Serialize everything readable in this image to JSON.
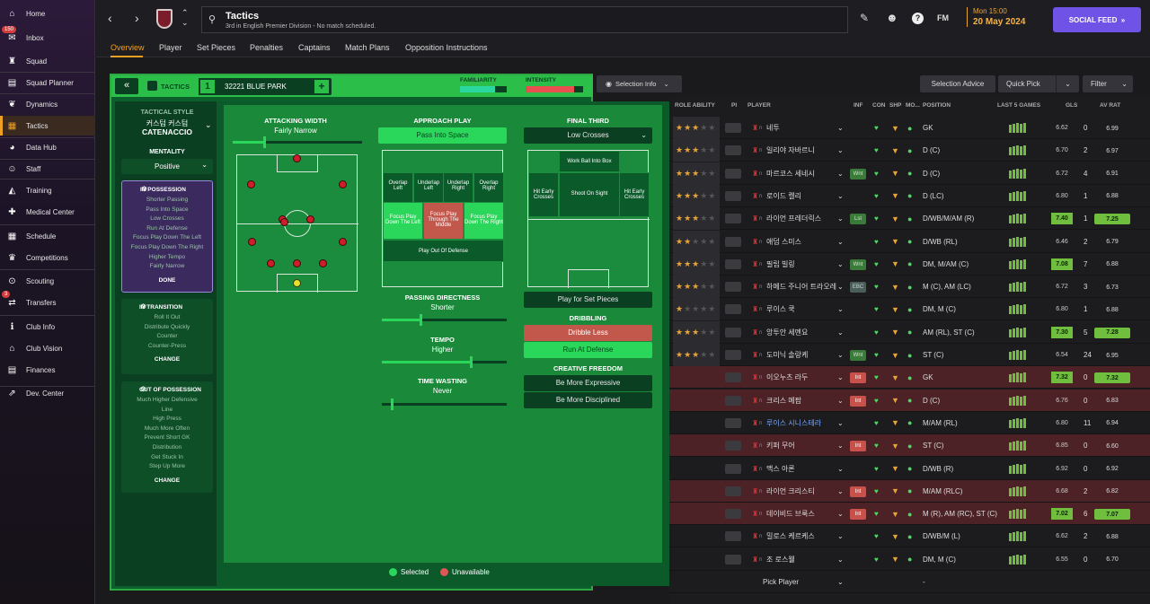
{
  "sidebar": {
    "items": [
      {
        "label": "Home",
        "icon": "home-icon"
      },
      {
        "label": "Inbox",
        "icon": "inbox-icon",
        "badge": "150"
      },
      {
        "label": "Squad",
        "icon": "shirt-icon"
      },
      {
        "label": "Squad Planner",
        "icon": "planner-icon"
      },
      {
        "label": "Dynamics",
        "icon": "dynamics-icon"
      },
      {
        "label": "Tactics",
        "icon": "tactics-icon",
        "active": true
      },
      {
        "label": "Data Hub",
        "icon": "datahub-icon"
      },
      {
        "label": "Staff",
        "icon": "staff-icon"
      },
      {
        "label": "Training",
        "icon": "training-icon"
      },
      {
        "label": "Medical Center",
        "icon": "medical-icon"
      },
      {
        "label": "Schedule",
        "icon": "calendar-icon"
      },
      {
        "label": "Competitions",
        "icon": "trophy-icon"
      },
      {
        "label": "Scouting",
        "icon": "scouting-icon"
      },
      {
        "label": "Transfers",
        "icon": "transfers-icon",
        "badge": "3"
      },
      {
        "label": "Club Info",
        "icon": "club-info-icon"
      },
      {
        "label": "Club Vision",
        "icon": "vision-icon"
      },
      {
        "label": "Finances",
        "icon": "finances-icon"
      },
      {
        "label": "Dev. Center",
        "icon": "dev-center-icon"
      }
    ]
  },
  "header": {
    "title": "Tactics",
    "subtitle": "3rd in English Premier Division - No match scheduled.",
    "day": "Mon 15:00",
    "date": "20 May 2024",
    "social": "SOCIAL FEED",
    "fm": "FM"
  },
  "tabs": [
    "Overview",
    "Player",
    "Set Pieces",
    "Penalties",
    "Captains",
    "Match Plans",
    "Opposition Instructions"
  ],
  "tactic_bar": {
    "label": "TACTICS",
    "slot": "1",
    "name": "32221 BLUE PARK",
    "familiarity": "FAMILIARITY",
    "intensity": "INTENSITY",
    "familiarity_level": 0.75,
    "intensity_level": 0.85
  },
  "selection_info": "Selection Info",
  "style": {
    "heading": "TACTICAL STYLE",
    "name_kr": "커스텀 커스텀",
    "name": "CATENACCIO",
    "mentality_label": "MENTALITY",
    "mentality": "Positive"
  },
  "possession": {
    "title": "IN POSSESSION",
    "items": [
      "Shorter Passing",
      "Pass Into Space",
      "Low Crosses",
      "Run At Defense",
      "Focus Play Down The Left",
      "Focus Play Down The Right",
      "Higher Tempo",
      "Fairly Narrow"
    ],
    "action": "DONE"
  },
  "transition": {
    "title": "IN TRANSITION",
    "items": [
      "Roll It Out",
      "Distribute Quickly",
      "Counter",
      "Counter-Press"
    ],
    "action": "CHANGE"
  },
  "out_possession": {
    "title": "OUT OF POSSESSION",
    "items": [
      "Much Higher Defensive",
      "Line",
      "High Press",
      "Much More Often",
      "Prevent Short GK",
      "Distribution",
      "Get Stuck In",
      "Step Up More"
    ],
    "action": "CHANGE"
  },
  "attacking_width": {
    "label": "ATTACKING WIDTH",
    "value": "Fairly Narrow"
  },
  "approach": {
    "label": "APPROACH PLAY",
    "value": "Pass Into Space",
    "zones": [
      "Overlap Left",
      "Underlap Left",
      "Underlap Right",
      "Overlap Right",
      "Focus Play Down The Left",
      "Focus Play Through The Middle",
      "Focus Play Down The Right",
      "Play Out Of Defense"
    ]
  },
  "final_third": {
    "label": "FINAL THIRD",
    "value": "Low Crosses",
    "zones": [
      "Work Ball Into Box",
      "Hit Early Crosses",
      "Shoot On Sight",
      "Hit Early Crosses"
    ],
    "set_pieces": "Play for Set Pieces"
  },
  "passing": {
    "label": "PASSING DIRECTNESS",
    "value": "Shorter"
  },
  "tempo": {
    "label": "TEMPO",
    "value": "Higher"
  },
  "time_wasting": {
    "label": "TIME WASTING",
    "value": "Never"
  },
  "dribbling": {
    "label": "DRIBBLING",
    "opt1": "Dribble Less",
    "opt2": "Run At Defense"
  },
  "creative": {
    "label": "CREATIVE FREEDOM",
    "opt1": "Be More Expressive",
    "opt2": "Be More Disciplined"
  },
  "legend": {
    "selected": "Selected",
    "unavailable": "Unavailable"
  },
  "right_buttons": {
    "advice": "Selection Advice",
    "quick": "Quick Pick",
    "filter": "Filter"
  },
  "table": {
    "headers": [
      "ROLE ABILITY",
      "PI",
      "PLAYER",
      "INF",
      "CON",
      "SHP",
      "MO...",
      "POSITION",
      "LAST 5 GAMES",
      "GLS",
      "AV RAT"
    ],
    "rows": [
      {
        "name": "네투",
        "pos": "GK",
        "l5": "6.62",
        "gls": "0",
        "av": "6.99",
        "stars": "★★★",
        "inf": "",
        "red": false
      },
      {
        "name": "일리야 자바르니",
        "pos": "D (C)",
        "l5": "6.70",
        "gls": "2",
        "av": "6.97",
        "stars": "★★★",
        "inf": "",
        "red": false
      },
      {
        "name": "마르코스 세네시",
        "pos": "D (C)",
        "l5": "6.72",
        "gls": "4",
        "av": "6.91",
        "stars": "★★★",
        "inf": "Wnt",
        "red": false
      },
      {
        "name": "로이드 켈리",
        "pos": "D (LC)",
        "l5": "6.80",
        "gls": "1",
        "av": "6.88",
        "stars": "★★★",
        "inf": "",
        "red": false
      },
      {
        "name": "라이언 프레더릭스",
        "pos": "D/WB/M/AM (R)",
        "l5": "7.40",
        "gls": "1",
        "av": "7.25",
        "stars": "★★★",
        "inf": "Lst",
        "red": false,
        "hi": true
      },
      {
        "name": "애덤 스미스",
        "pos": "D/WB (RL)",
        "l5": "6.46",
        "gls": "2",
        "av": "6.79",
        "stars": "★★",
        "inf": "",
        "red": false
      },
      {
        "name": "필립 빌링",
        "pos": "DM, M/AM (C)",
        "l5": "7.08",
        "gls": "7",
        "av": "6.88",
        "stars": "★★★",
        "inf": "Wnt",
        "red": false,
        "l5hi": true
      },
      {
        "name": "하메드 주니어 트라오레",
        "pos": "M (C), AM (LC)",
        "l5": "6.72",
        "gls": "3",
        "av": "6.73",
        "stars": "★★★",
        "inf": "EBC",
        "red": false
      },
      {
        "name": "루이스 쿡",
        "pos": "DM, M (C)",
        "l5": "6.80",
        "gls": "1",
        "av": "6.88",
        "stars": "★",
        "inf": "",
        "red": false
      },
      {
        "name": "앙투안 세멘요",
        "pos": "AM (RL), ST (C)",
        "l5": "7.30",
        "gls": "5",
        "av": "7.28",
        "stars": "★★★",
        "inf": "",
        "red": false,
        "hi": true
      },
      {
        "name": "도미닉 솔랑케",
        "pos": "ST (C)",
        "l5": "6.54",
        "gls": "24",
        "av": "6.95",
        "stars": "★★★",
        "inf": "Wnt",
        "red": false
      },
      {
        "name": "이오누츠 라두",
        "pos": "GK",
        "l5": "7.32",
        "gls": "0",
        "av": "7.32",
        "stars": "",
        "inf": "Int",
        "red": true,
        "hi": true
      },
      {
        "name": "크리스 메팜",
        "pos": "D (C)",
        "l5": "6.76",
        "gls": "0",
        "av": "6.83",
        "stars": "",
        "inf": "Int",
        "red": true
      },
      {
        "name": "루이스 시니스테라",
        "pos": "M/AM (RL)",
        "l5": "6.80",
        "gls": "11",
        "av": "6.94",
        "stars": "",
        "inf": "",
        "red": false
      },
      {
        "name": "키퍼 무어",
        "pos": "ST (C)",
        "l5": "6.85",
        "gls": "0",
        "av": "6.60",
        "stars": "",
        "inf": "Int",
        "red": true
      },
      {
        "name": "맥스 아론",
        "pos": "D/WB (R)",
        "l5": "6.92",
        "gls": "0",
        "av": "6.92",
        "stars": "",
        "inf": "",
        "red": false
      },
      {
        "name": "라이언 크리스티",
        "pos": "M/AM (RLC)",
        "l5": "6.68",
        "gls": "2",
        "av": "6.82",
        "stars": "",
        "inf": "Int",
        "red": true
      },
      {
        "name": "데이비드 브룩스",
        "pos": "M (R), AM (RC), ST (C)",
        "l5": "7.02",
        "gls": "6",
        "av": "7.07",
        "stars": "",
        "inf": "Int",
        "red": true,
        "hi": true
      },
      {
        "name": "밀로스 케르케스",
        "pos": "D/WB/M (L)",
        "l5": "6.62",
        "gls": "2",
        "av": "6.88",
        "stars": "",
        "inf": "",
        "red": false
      },
      {
        "name": "조 로스웰",
        "pos": "DM, M (C)",
        "l5": "6.55",
        "gls": "0",
        "av": "6.70",
        "stars": "",
        "inf": "",
        "red": false
      },
      {
        "name": "Pick Player",
        "pos": "-",
        "l5": "",
        "gls": "",
        "av": "",
        "stars": "",
        "inf": "",
        "red": false
      }
    ]
  },
  "colors": {
    "accent": "#f0a020",
    "green": "#2bd75a",
    "red": "#c2574c",
    "purple": "#6f52e6"
  }
}
